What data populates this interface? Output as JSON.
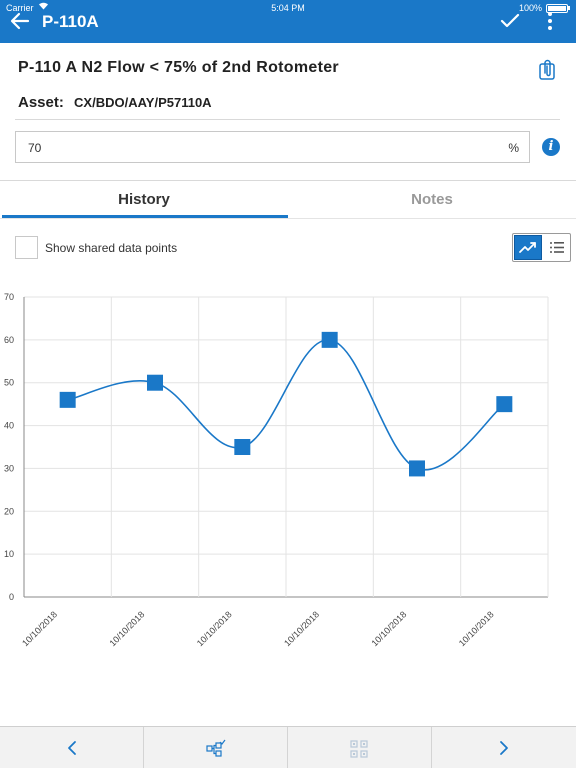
{
  "status_bar": {
    "carrier": "Carrier",
    "time": "5:04 PM",
    "battery": "100%"
  },
  "app_bar": {
    "title": "P-110A",
    "accent_color": "#1a78c8",
    "back_icon": "arrow-left-icon",
    "confirm_icon": "check-icon",
    "menu_icon": "more-vertical-icon"
  },
  "rule": {
    "title": "P-110 A N2 Flow < 75% of 2nd Rotometer",
    "asset_label": "Asset:",
    "asset_value": "CX/BDO/AAY/P57110A",
    "attachment_icon": "paperclip-icon"
  },
  "reading": {
    "value": "70",
    "unit": "%",
    "info_icon": "info-icon",
    "info_glyph": "i"
  },
  "tabs": [
    {
      "label": "History",
      "active": true
    },
    {
      "label": "Notes",
      "active": false
    }
  ],
  "history": {
    "shared_label": "Show shared data points",
    "shared_checked": false,
    "view_mode": "chart"
  },
  "chart_data": {
    "type": "line",
    "categories": [
      "10/10/2018",
      "10/10/2018",
      "10/10/2018",
      "10/10/2018",
      "10/10/2018",
      "10/10/2018"
    ],
    "series": [
      {
        "values": [
          46,
          50,
          35,
          60,
          30,
          45
        ],
        "color": "#1a78c8",
        "marker": "square",
        "smooth": true
      }
    ],
    "ylim": [
      0,
      70
    ],
    "yticks": [
      0,
      10,
      20,
      30,
      40,
      50,
      60,
      70
    ],
    "grid": true,
    "title": "",
    "xlabel": "",
    "ylabel": ""
  },
  "bottom_bar": {
    "prev_icon": "chevron-left-icon",
    "workflow_icon": "workflow-icon",
    "scan_icon": "qr-scan-icon",
    "next_icon": "chevron-right-icon"
  }
}
